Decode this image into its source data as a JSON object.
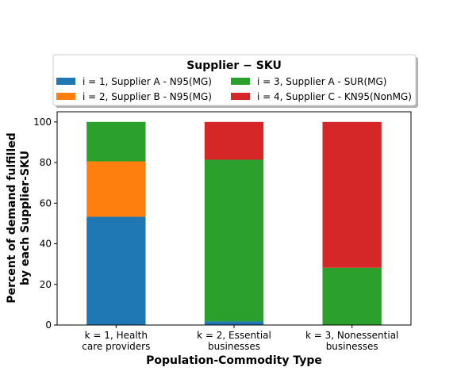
{
  "chart_data": {
    "type": "bar",
    "stacked": true,
    "categories": [
      [
        "k = 1, Health",
        "care providers"
      ],
      [
        "k = 2, Essential",
        "businesses"
      ],
      [
        "k = 3, Nonessential",
        "businesses"
      ]
    ],
    "series": [
      {
        "name": "i = 1, Supplier A - N95(MG)",
        "color": "#1f77b4",
        "values": [
          53.3,
          1.8,
          0
        ]
      },
      {
        "name": "i = 2, Supplier B - N95(MG)",
        "color": "#ff7f0e",
        "values": [
          27.3,
          0,
          0
        ]
      },
      {
        "name": "i = 3, Supplier A - SUR(MG)",
        "color": "#2ca02c",
        "values": [
          19.4,
          79.6,
          28.2
        ]
      },
      {
        "name": "i = 4, Supplier C - KN95(NonMG)",
        "color": "#d62728",
        "values": [
          0,
          18.6,
          71.8
        ]
      }
    ],
    "xlabel": "Population-Commodity Type",
    "ylabel": [
      "Percent of demand fulfilled",
      "by each Supplier-SKU"
    ],
    "ylim": [
      0,
      105
    ],
    "yticks": [
      0,
      20,
      40,
      60,
      80,
      100
    ],
    "legend": {
      "title": "Supplier − SKU",
      "placement": "top-center, above plot",
      "columns": 2
    },
    "grid": false
  }
}
